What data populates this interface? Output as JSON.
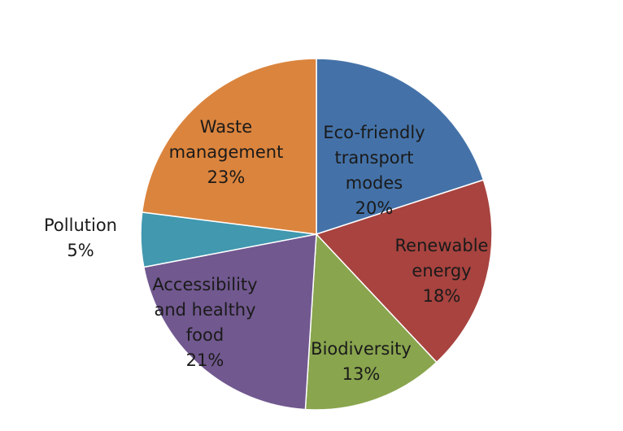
{
  "chart_data": {
    "type": "pie",
    "title": "",
    "start_angle_deg": 0,
    "direction": "clockwise",
    "slices": [
      {
        "label_lines": [
          "Eco-friendly",
          "transport",
          "modes"
        ],
        "value": 20,
        "value_label": "20%",
        "color": "#4472a8"
      },
      {
        "label_lines": [
          "Renewable",
          "energy"
        ],
        "value": 18,
        "value_label": "18%",
        "color": "#a8433f"
      },
      {
        "label_lines": [
          "Biodiversity"
        ],
        "value": 13,
        "value_label": "13%",
        "color": "#89a54e"
      },
      {
        "label_lines": [
          "Accessibility",
          "and healthy",
          "food"
        ],
        "value": 21,
        "value_label": "21%",
        "color": "#71588f"
      },
      {
        "label_lines": [
          "Pollution"
        ],
        "value": 5,
        "value_label": "5%",
        "color": "#4198af"
      },
      {
        "label_lines": [
          "Waste",
          "management"
        ],
        "value": 23,
        "value_label": "23%",
        "color": "#db843d"
      }
    ]
  }
}
